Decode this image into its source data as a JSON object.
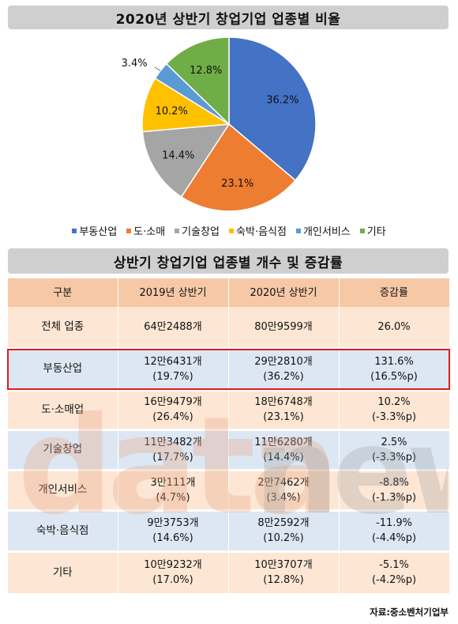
{
  "chart_data": [
    {
      "type": "pie",
      "title": "2020년 상반기 창업기업 업종별 비율",
      "categories": [
        "부동산업",
        "도·소매",
        "기술창업",
        "숙박·음식점",
        "개인서비스",
        "기타"
      ],
      "values": [
        36.2,
        23.1,
        14.4,
        10.2,
        3.4,
        12.8
      ],
      "value_labels": [
        "36.2%",
        "23.1%",
        "14.4%",
        "10.2%",
        "3.4%",
        "12.8%"
      ],
      "colors": [
        "#4472c4",
        "#ed7d31",
        "#a5a5a5",
        "#ffc000",
        "#5b9bd5",
        "#70ad47"
      ],
      "legend": "bottom"
    },
    {
      "type": "table",
      "title": "상반기 창업기업 업종별 개수 및 증감률",
      "columns": [
        "구분",
        "2019년 상반기",
        "2020년 상반기",
        "증감률"
      ],
      "rows": [
        {
          "cat": "전체 업종",
          "y2019": "64만2488개",
          "y2019_pct": "",
          "y2020": "80만9599개",
          "y2020_pct": "",
          "chg": "26.0%",
          "chg_p": ""
        },
        {
          "cat": "부동산업",
          "y2019": "12만6431개",
          "y2019_pct": "(19.7%)",
          "y2020": "29만2810개",
          "y2020_pct": "(36.2%)",
          "chg": "131.6%",
          "chg_p": "(16.5%p)"
        },
        {
          "cat": "도·소매업",
          "y2019": "16만9479개",
          "y2019_pct": "(26.4%)",
          "y2020": "18만6748개",
          "y2020_pct": "(23.1%)",
          "chg": "10.2%",
          "chg_p": "(-3.3%p)"
        },
        {
          "cat": "기술창업",
          "y2019": "11만3482개",
          "y2019_pct": "(17.7%)",
          "y2020": "11만6280개",
          "y2020_pct": "(14.4%)",
          "chg": "2.5%",
          "chg_p": "(-3.3%p)"
        },
        {
          "cat": "개인서비스",
          "y2019": "3만111개",
          "y2019_pct": "(4.7%)",
          "y2020": "2만7462개",
          "y2020_pct": "(3.4%)",
          "chg": "-8.8%",
          "chg_p": "(-1.3%p)"
        },
        {
          "cat": "숙박·음식점",
          "y2019": "9만3753개",
          "y2019_pct": "(14.6%)",
          "y2020": "8만2592개",
          "y2020_pct": "(10.2%)",
          "chg": "-11.9%",
          "chg_p": "(-4.4%p)"
        },
        {
          "cat": "기타",
          "y2019": "10만9232개",
          "y2019_pct": "(17.0%)",
          "y2020": "10만3707개",
          "y2020_pct": "(12.8%)",
          "chg": "-5.1%",
          "chg_p": "(-4.2%p)"
        }
      ],
      "highlighted_row": "부동산업"
    }
  ],
  "watermark": "datanews",
  "source": "자료:중소벤처기업부"
}
